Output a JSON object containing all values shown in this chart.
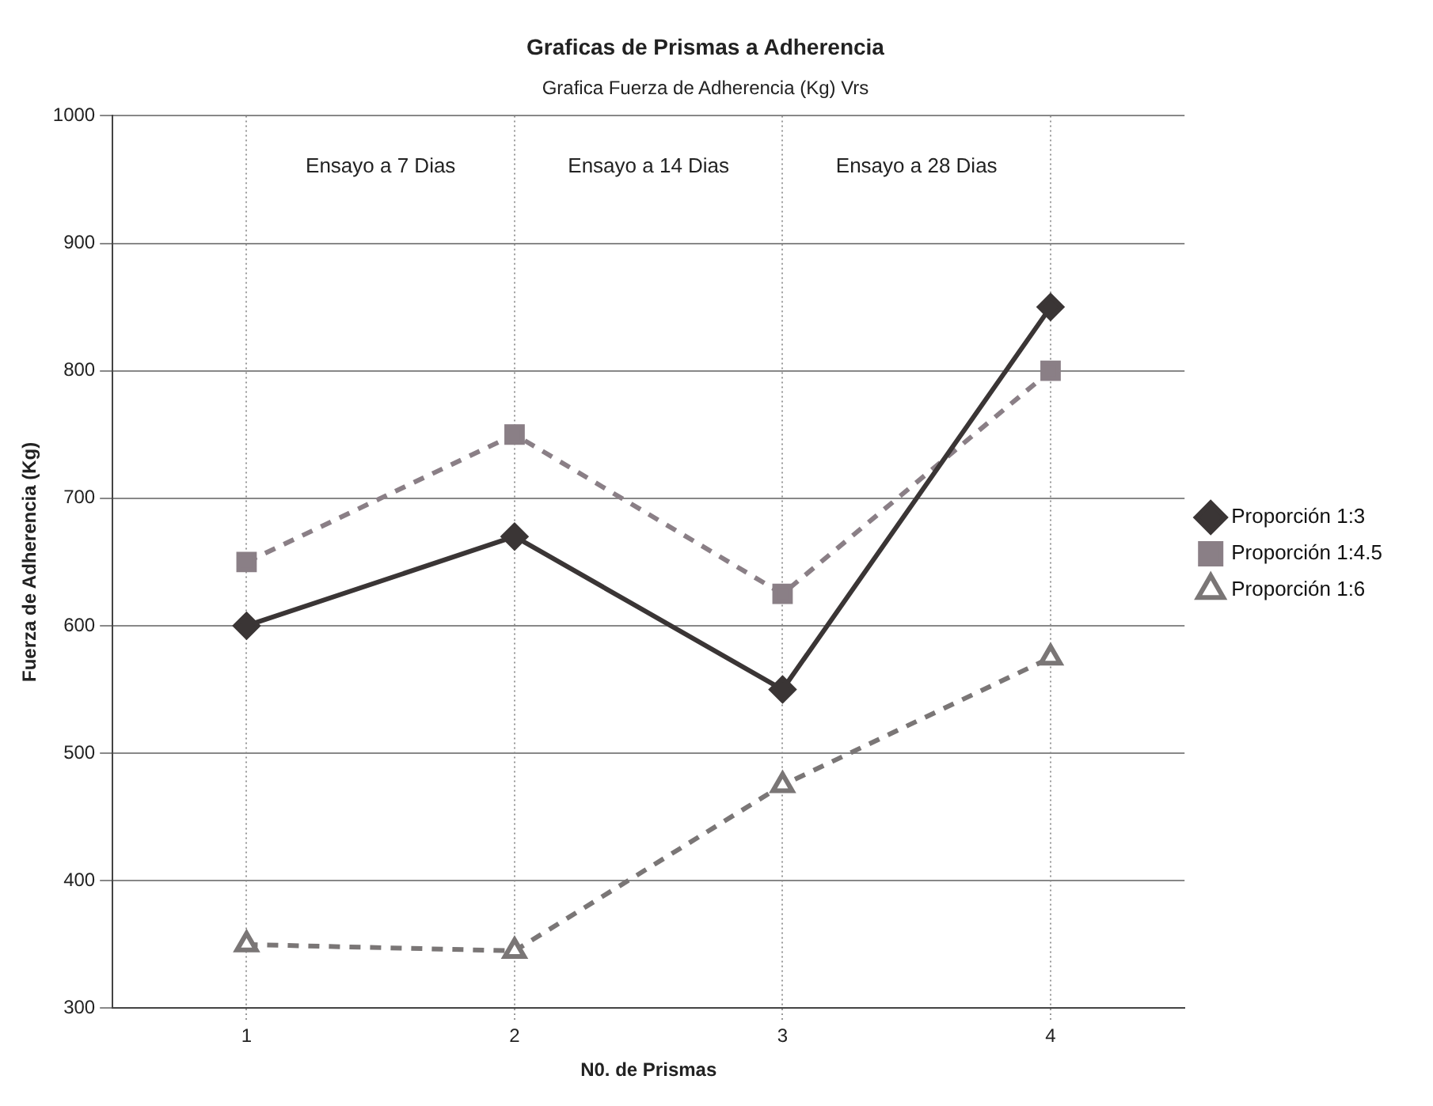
{
  "chart_data": {
    "type": "line",
    "title": "Graficas de Prismas a Adherencia",
    "subtitle": "Grafica Fuerza de Adherencia (Kg) Vrs",
    "xlabel": "N0. de Prismas",
    "ylabel": "Fuerza de Adherencia (Kg)",
    "categories": [
      "1",
      "2",
      "3",
      "4"
    ],
    "series": [
      {
        "name": "Proporción 1:3",
        "color": "#3a3535",
        "marker": "diamond",
        "line_style": "solid",
        "values": [
          600,
          670,
          550,
          850
        ]
      },
      {
        "name": "Proporción 1:4.5",
        "color": "#8a7f86",
        "marker": "square",
        "line_style": "dashed",
        "values": [
          650,
          750,
          625,
          800
        ]
      },
      {
        "name": "Proporción 1:6",
        "color": "#7a7676",
        "marker": "triangle",
        "line_style": "dashed",
        "values": [
          350,
          345,
          475,
          575
        ]
      }
    ],
    "annotations": [
      "Ensayo a 7 Dias",
      "Ensayo a 14 Dias",
      "Ensayo a 28 Dias"
    ],
    "ylim": [
      300,
      1000
    ],
    "yticks": [
      300,
      400,
      500,
      600,
      700,
      800,
      900,
      1000
    ],
    "grid": true,
    "legend": "right"
  }
}
